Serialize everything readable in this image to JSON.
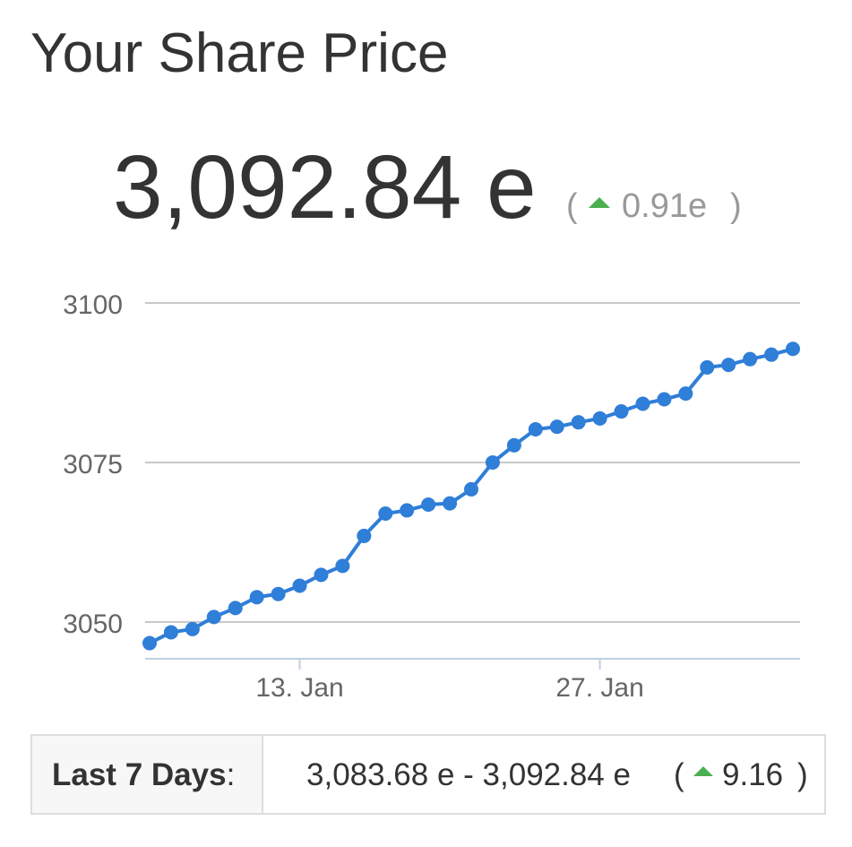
{
  "header": {
    "title": "Your Share Price",
    "price": "3,092.84 e",
    "paren_open": "(",
    "change": "0.91e",
    "paren_close": ")"
  },
  "chart_data": {
    "type": "line",
    "categories": [
      null,
      null,
      null,
      null,
      null,
      null,
      null,
      "13. Jan",
      null,
      null,
      null,
      null,
      null,
      null,
      null,
      null,
      null,
      null,
      null,
      null,
      null,
      "27. Jan",
      null,
      null,
      null,
      null,
      null,
      null,
      null,
      null,
      null
    ],
    "values": [
      3046.7,
      3048.4,
      3048.9,
      3050.8,
      3052.2,
      3053.9,
      3054.4,
      3055.7,
      3057.4,
      3058.8,
      3063.5,
      3067.0,
      3067.5,
      3068.4,
      3068.6,
      3070.8,
      3075.0,
      3077.7,
      3080.2,
      3080.6,
      3081.3,
      3081.9,
      3083.0,
      3084.2,
      3084.9,
      3085.8,
      3089.9,
      3090.3,
      3091.2,
      3091.9,
      3092.8
    ],
    "color": "#2f7ed8",
    "ylim": [
      3044.25,
      3100
    ],
    "yticks": [
      3050,
      3075,
      3100
    ],
    "grid": true
  },
  "footer": {
    "label": "Last 7 Days",
    "colon": ":",
    "range": "3,083.68 e - 3,092.84 e",
    "paren_open": "(",
    "change": "9.16",
    "paren_close": ")"
  }
}
